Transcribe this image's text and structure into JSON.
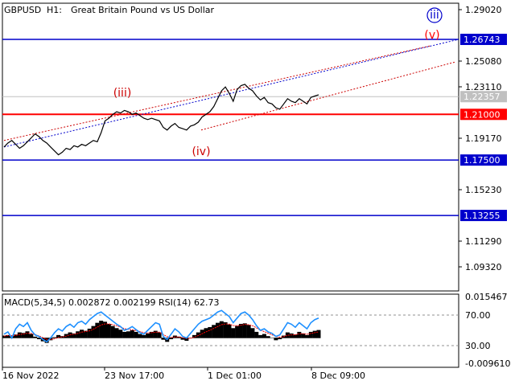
{
  "header": {
    "symbol": "GBPUSD",
    "timeframe": "H1:",
    "description": "Great Britain Pound vs US Dollar"
  },
  "price_axis": {
    "ticks": [
      "1.29020",
      "1.25080",
      "1.23110",
      "1.19170",
      "1.15230",
      "1.11290",
      "1.09320"
    ],
    "min": 1.0932,
    "max": 1.2902
  },
  "time_axis": {
    "labels": [
      "16 Nov 2022",
      "23 Nov 17:00",
      "1 Dec 01:00",
      "8 Dec 09:00"
    ]
  },
  "levels": [
    {
      "value": 1.26743,
      "label": "1.26743",
      "color": "#0000cc",
      "bg": "#0000cc",
      "text_color": "#ffffff"
    },
    {
      "value": 1.22357,
      "label": "1.22357",
      "color": "#c0c0c0",
      "bg": "#c0c0c0",
      "text_color": "#ffffff"
    },
    {
      "value": 1.21,
      "label": "1.21000",
      "color": "#ff0000",
      "bg": "#ff0000",
      "text_color": "#ffffff"
    },
    {
      "value": 1.175,
      "label": "1.17500",
      "color": "#0000cc",
      "bg": "#0000cc",
      "text_color": "#ffffff"
    },
    {
      "value": 1.13255,
      "label": "1.13255",
      "color": "#0000cc",
      "bg": "#0000cc",
      "text_color": "#ffffff"
    }
  ],
  "wave_labels": [
    {
      "text": "iii",
      "circled": true,
      "color": "#0000cc"
    },
    {
      "text": "(v)",
      "circled": false,
      "color": "#ff0000"
    },
    {
      "text": "(iii)",
      "circled": false,
      "color": "#cc0000"
    },
    {
      "text": "(iv)",
      "circled": false,
      "color": "#cc0000"
    }
  ],
  "indicator": {
    "label": "MACD(5,34,5) 0.002872 0.002199 RSI(14) 62.73",
    "ticks": [
      "0.015467",
      "70.00",
      "30.00",
      "-0.009610"
    ],
    "macd_max": 0.015467,
    "macd_min": -0.00961,
    "rsi_levels": [
      70,
      30
    ]
  },
  "colors": {
    "price_line": "#000000",
    "blue_level": "#0000cc",
    "red_level": "#ff0000",
    "rsi_line": "#1e90ff",
    "macd_hist": "#000000",
    "signal_line": "#ff0000",
    "trend_blue": "#0000cc",
    "trend_red": "#cc0000"
  },
  "chart_data": {
    "type": "line",
    "title": "GBPUSD, H1: Great Britain Pound vs US Dollar",
    "xlabel": "",
    "ylabel": "",
    "ylim": [
      1.0932,
      1.2902
    ],
    "grid": false,
    "series": [
      {
        "values": [
          1.185,
          1.188,
          1.19,
          1.187,
          1.184,
          1.186,
          1.189,
          1.192,
          1.195,
          1.193,
          1.19,
          1.188,
          1.185,
          1.182,
          1.179,
          1.181,
          1.184,
          1.183,
          1.186,
          1.185,
          1.187,
          1.186,
          1.188,
          1.19,
          1.189,
          1.196,
          1.205,
          1.207,
          1.21,
          1.212,
          1.211,
          1.213,
          1.212,
          1.21,
          1.211,
          1.209,
          1.207,
          1.206,
          1.207,
          1.206,
          1.205,
          1.2,
          1.198,
          1.201,
          1.203,
          1.2,
          1.199,
          1.198,
          1.201,
          1.202,
          1.204,
          1.208,
          1.21,
          1.212,
          1.216,
          1.222,
          1.228,
          1.231,
          1.226,
          1.22,
          1.229,
          1.232,
          1.233,
          1.23,
          1.228,
          1.224,
          1.221,
          1.223,
          1.219,
          1.218,
          1.215,
          1.214,
          1.218,
          1.222,
          1.22,
          1.219,
          1.222,
          1.22,
          1.218,
          1.223,
          1.224,
          1.225
        ]
      }
    ],
    "rsi": [
      45,
      48,
      40,
      52,
      58,
      55,
      60,
      50,
      44,
      42,
      38,
      35,
      40,
      47,
      52,
      49,
      55,
      58,
      54,
      60,
      62,
      58,
      64,
      68,
      72,
      74,
      70,
      66,
      62,
      58,
      55,
      50,
      52,
      55,
      51,
      47,
      45,
      50,
      55,
      60,
      58,
      42,
      38,
      45,
      52,
      48,
      42,
      40,
      46,
      52,
      58,
      62,
      64,
      66,
      70,
      74,
      76,
      72,
      68,
      60,
      66,
      72,
      74,
      70,
      64,
      56,
      50,
      52,
      48,
      46,
      42,
      44,
      52,
      60,
      58,
      54,
      60,
      56,
      52,
      60,
      64,
      66
    ],
    "macd": [
      0.0008,
      0.001,
      0.0006,
      0.0012,
      0.002,
      0.0018,
      0.0024,
      0.0014,
      0.0004,
      -0.0004,
      -0.0012,
      -0.0018,
      -0.0008,
      0.0002,
      0.001,
      0.0006,
      0.0014,
      0.002,
      0.0016,
      0.0024,
      0.003,
      0.0026,
      0.0034,
      0.0044,
      0.0056,
      0.0064,
      0.006,
      0.0052,
      0.0044,
      0.0036,
      0.003,
      0.0022,
      0.0024,
      0.0028,
      0.0022,
      0.0014,
      0.001,
      0.0016,
      0.0022,
      0.0026,
      0.002,
      -0.0006,
      -0.0014,
      -0.0004,
      0.0008,
      0.0004,
      -0.0006,
      -0.001,
      0.0,
      0.001,
      0.002,
      0.003,
      0.0036,
      0.004,
      0.0048,
      0.0056,
      0.0062,
      0.0058,
      0.005,
      0.0036,
      0.0044,
      0.0052,
      0.0054,
      0.0048,
      0.0036,
      0.0022,
      0.001,
      0.0014,
      0.0006,
      0.0,
      -0.0008,
      -0.0004,
      0.0008,
      0.002,
      0.0016,
      0.0012,
      0.0022,
      0.0016,
      0.001,
      0.0022,
      0.0026,
      0.0029
    ],
    "signal": [
      0.0006,
      0.0008,
      0.0008,
      0.0009,
      0.0012,
      0.0014,
      0.0017,
      0.0016,
      0.0012,
      0.0007,
      0.0,
      -0.0006,
      -0.0007,
      -0.0004,
      0.0001,
      0.0003,
      0.0006,
      0.0011,
      0.0013,
      0.0016,
      0.0021,
      0.0023,
      0.0026,
      0.0032,
      0.004,
      0.0048,
      0.0052,
      0.0052,
      0.0049,
      0.0045,
      0.004,
      0.0034,
      0.0031,
      0.003,
      0.0027,
      0.0023,
      0.0019,
      0.0018,
      0.0019,
      0.0021,
      0.0021,
      0.0012,
      0.0004,
      0.0001,
      0.0003,
      0.0003,
      0.0,
      -0.0003,
      -0.0002,
      0.0002,
      0.0008,
      0.0015,
      0.0022,
      0.0028,
      0.0035,
      0.0042,
      0.0049,
      0.0052,
      0.0051,
      0.0046,
      0.0045,
      0.0047,
      0.005,
      0.0049,
      0.0045,
      0.0037,
      0.0028,
      0.0023,
      0.0017,
      0.0011,
      0.0005,
      0.0002,
      0.0004,
      0.0009,
      0.0011,
      0.0011,
      0.0015,
      0.0015,
      0.0013,
      0.0016,
      0.0019,
      0.0022
    ]
  }
}
